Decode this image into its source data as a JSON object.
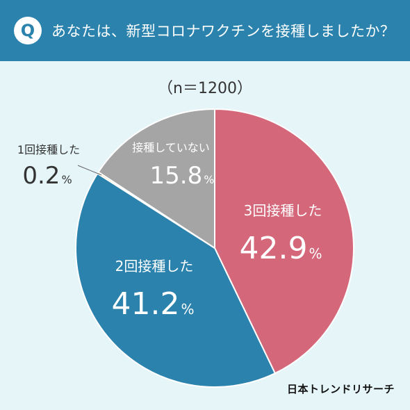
{
  "header": {
    "badge": "Q",
    "question": "あなたは、新型コロナワクチンを接種しましたか？"
  },
  "sample_label": "（n＝1200）",
  "footer": {
    "source": "日本トレンドリサーチ"
  },
  "colors": {
    "header_bg": "#2a82ad",
    "page_bg": "#e6f5f8",
    "slice_3": "#d4687a",
    "slice_2": "#2a82ad",
    "slice_1": "#e0b63e",
    "slice_none": "#a5a5a5"
  },
  "chart_data": {
    "type": "pie",
    "title": "",
    "start": "12 o'clock, clockwise",
    "slices": [
      {
        "label": "3回接種した",
        "value": 42.9,
        "value_text": "42.9",
        "unit": "%",
        "color": "#d4687a"
      },
      {
        "label": "2回接種した",
        "value": 41.2,
        "value_text": "41.2",
        "unit": "%",
        "color": "#2a82ad"
      },
      {
        "label": "1回接種した",
        "value": 0.2,
        "value_text": "0.2",
        "unit": "%",
        "color": "#e0b63e"
      },
      {
        "label": "接種していない",
        "value": 15.8,
        "value_text": "15.8",
        "unit": "%",
        "color": "#a5a5a5"
      }
    ]
  }
}
